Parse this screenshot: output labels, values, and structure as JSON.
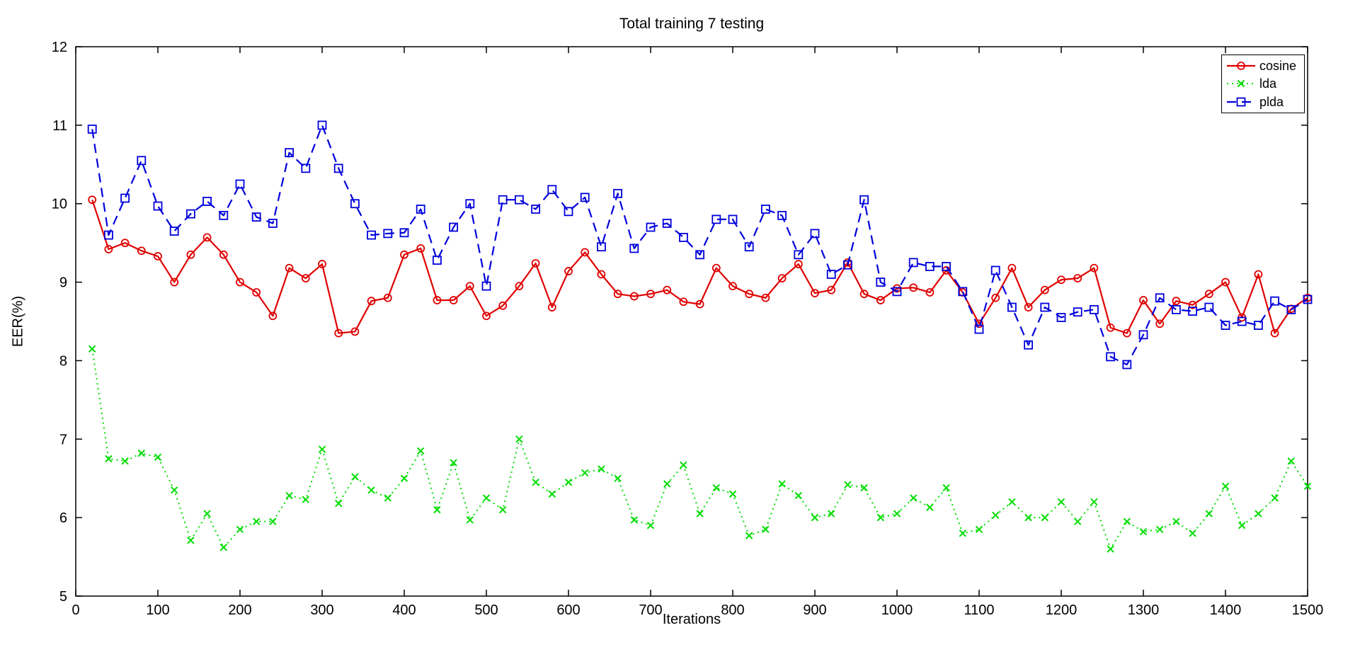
{
  "figure": {
    "title": "Total training 7 testing",
    "xlabel": "Iterations",
    "ylabel": "EER(%)"
  },
  "axes": {
    "x_tick_labels": [
      "0",
      "100",
      "200",
      "300",
      "400",
      "500",
      "600",
      "700",
      "800",
      "900",
      "1000",
      "1100",
      "1200",
      "1300",
      "1400",
      "1500"
    ],
    "x_ticks": [
      0,
      100,
      200,
      300,
      400,
      500,
      600,
      700,
      800,
      900,
      1000,
      1100,
      1200,
      1300,
      1400,
      1500
    ],
    "y_tick_labels": [
      "5",
      "6",
      "7",
      "8",
      "9",
      "10",
      "11",
      "12"
    ],
    "y_ticks": [
      5,
      6,
      7,
      8,
      9,
      10,
      11,
      12
    ],
    "grid": false,
    "box": true
  },
  "legend": {
    "position": "top-right",
    "entries": [
      {
        "label": "cosine",
        "color": "#e00000",
        "line_style": "solid",
        "marker": "circle"
      },
      {
        "label": "lda",
        "color": "#00dd00",
        "line_style": "dotted",
        "marker": "x"
      },
      {
        "label": "plda",
        "color": "#0000dd",
        "line_style": "dashed",
        "marker": "square"
      }
    ]
  },
  "chart_data": {
    "type": "line",
    "title": "Total training 7 testing",
    "xlabel": "Iterations",
    "ylabel": "EER(%)",
    "xlim": [
      0,
      1500
    ],
    "ylim": [
      5,
      12
    ],
    "legend_position": "top-right",
    "grid": false,
    "x": [
      20,
      40,
      60,
      80,
      100,
      120,
      140,
      160,
      180,
      200,
      220,
      240,
      260,
      280,
      300,
      320,
      340,
      360,
      380,
      400,
      420,
      440,
      460,
      480,
      500,
      520,
      540,
      560,
      580,
      600,
      620,
      640,
      660,
      680,
      700,
      720,
      740,
      760,
      780,
      800,
      820,
      840,
      860,
      880,
      900,
      920,
      940,
      960,
      980,
      1000,
      1020,
      1040,
      1060,
      1080,
      1100,
      1120,
      1140,
      1160,
      1180,
      1200,
      1220,
      1240,
      1260,
      1280,
      1300,
      1320,
      1340,
      1360,
      1380,
      1400,
      1420,
      1440,
      1460,
      1480,
      1500
    ],
    "series": [
      {
        "name": "cosine",
        "color": "#e00000",
        "line_style": "solid",
        "marker": "circle",
        "values": [
          10.05,
          9.42,
          9.5,
          9.4,
          9.33,
          9.0,
          9.35,
          9.57,
          9.35,
          9.0,
          8.87,
          8.57,
          9.18,
          9.05,
          9.23,
          8.35,
          8.37,
          8.76,
          8.8,
          9.35,
          9.43,
          8.77,
          8.77,
          8.95,
          8.57,
          8.7,
          8.95,
          9.24,
          8.68,
          9.14,
          9.38,
          9.1,
          8.85,
          8.82,
          8.85,
          8.9,
          8.75,
          8.72,
          9.18,
          8.95,
          8.85,
          8.8,
          9.05,
          9.23,
          8.86,
          8.9,
          9.25,
          8.85,
          8.77,
          8.92,
          8.93,
          8.87,
          9.15,
          8.87,
          8.47,
          8.8,
          9.18,
          8.68,
          8.9,
          9.03,
          9.05,
          9.18,
          8.42,
          8.35,
          8.77,
          8.47,
          8.76,
          8.71,
          8.85,
          9.0,
          8.55,
          9.1,
          8.35,
          8.66,
          8.8
        ]
      },
      {
        "name": "lda",
        "color": "#00dd00",
        "line_style": "dotted",
        "marker": "x",
        "values": [
          8.15,
          6.75,
          6.72,
          6.82,
          6.77,
          6.35,
          5.71,
          6.05,
          5.62,
          5.85,
          5.95,
          5.95,
          6.28,
          6.23,
          6.87,
          6.18,
          6.52,
          6.35,
          6.25,
          6.5,
          6.85,
          6.1,
          6.7,
          5.97,
          6.25,
          6.1,
          7.0,
          6.45,
          6.3,
          6.45,
          6.57,
          6.62,
          6.5,
          5.97,
          5.9,
          6.43,
          6.67,
          6.05,
          6.38,
          6.3,
          5.77,
          5.85,
          6.43,
          6.28,
          6.0,
          6.05,
          6.42,
          6.38,
          6.0,
          6.05,
          6.25,
          6.13,
          6.38,
          5.8,
          5.85,
          6.03,
          6.2,
          6.0,
          6.0,
          6.2,
          5.95,
          6.2,
          5.6,
          5.95,
          5.82,
          5.85,
          5.95,
          5.8,
          6.05,
          6.4,
          5.9,
          6.05,
          6.25,
          6.72,
          6.4
        ]
      },
      {
        "name": "plda",
        "color": "#0000dd",
        "line_style": "dashed",
        "marker": "square",
        "values": [
          10.95,
          9.6,
          10.07,
          10.55,
          9.97,
          9.65,
          9.87,
          10.03,
          9.85,
          10.25,
          9.83,
          9.75,
          10.65,
          10.45,
          11.0,
          10.45,
          10.0,
          9.6,
          9.62,
          9.63,
          9.93,
          9.28,
          9.7,
          10.0,
          8.95,
          10.05,
          10.05,
          9.93,
          10.18,
          9.9,
          10.08,
          9.45,
          10.13,
          9.43,
          9.7,
          9.75,
          9.57,
          9.35,
          9.8,
          9.8,
          9.45,
          9.93,
          9.85,
          9.35,
          9.62,
          9.1,
          9.22,
          10.05,
          9.0,
          8.88,
          9.25,
          9.2,
          9.2,
          8.88,
          8.4,
          9.15,
          8.68,
          8.2,
          8.68,
          8.55,
          8.62,
          8.65,
          8.05,
          7.95,
          8.33,
          8.8,
          8.65,
          8.63,
          8.68,
          8.45,
          8.5,
          8.45,
          8.76,
          8.65,
          8.78
        ]
      }
    ]
  }
}
